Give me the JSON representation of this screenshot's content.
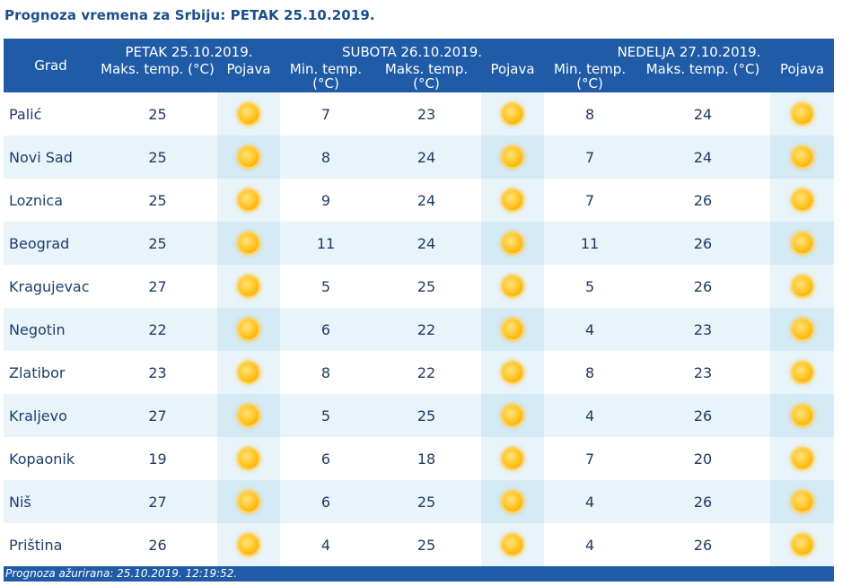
{
  "title": "Prognoza vremena za Srbiju: PETAK  25.10.2019.",
  "header": {
    "grad": "Grad",
    "days": [
      "PETAK  25.10.2019.",
      "SUBOTA  26.10.2019.",
      "NEDELJA  27.10.2019."
    ],
    "max_temp": "Maks. temp. (°C)",
    "min_temp": "Min. temp. (°C)",
    "pojava": "Pojava"
  },
  "weather_icon": "sun-icon",
  "rows": [
    {
      "city": "Palić",
      "d1_max": "25",
      "d2_min": "7",
      "d2_max": "23",
      "d3_min": "8",
      "d3_max": "24"
    },
    {
      "city": "Novi Sad",
      "d1_max": "25",
      "d2_min": "8",
      "d2_max": "24",
      "d3_min": "7",
      "d3_max": "24"
    },
    {
      "city": "Loznica",
      "d1_max": "25",
      "d2_min": "9",
      "d2_max": "24",
      "d3_min": "7",
      "d3_max": "26"
    },
    {
      "city": "Beograd",
      "d1_max": "25",
      "d2_min": "11",
      "d2_max": "24",
      "d3_min": "11",
      "d3_max": "26"
    },
    {
      "city": "Kragujevac",
      "d1_max": "27",
      "d2_min": "5",
      "d2_max": "25",
      "d3_min": "5",
      "d3_max": "26"
    },
    {
      "city": "Negotin",
      "d1_max": "22",
      "d2_min": "6",
      "d2_max": "22",
      "d3_min": "4",
      "d3_max": "23"
    },
    {
      "city": "Zlatibor",
      "d1_max": "23",
      "d2_min": "8",
      "d2_max": "22",
      "d3_min": "8",
      "d3_max": "23"
    },
    {
      "city": "Kraljevo",
      "d1_max": "27",
      "d2_min": "5",
      "d2_max": "25",
      "d3_min": "4",
      "d3_max": "26"
    },
    {
      "city": "Kopaonik",
      "d1_max": "19",
      "d2_min": "6",
      "d2_max": "18",
      "d3_min": "7",
      "d3_max": "20"
    },
    {
      "city": "Niš",
      "d1_max": "27",
      "d2_min": "6",
      "d2_max": "25",
      "d3_min": "4",
      "d3_max": "26"
    },
    {
      "city": "Priština",
      "d1_max": "26",
      "d2_min": "4",
      "d2_max": "25",
      "d3_min": "4",
      "d3_max": "26"
    }
  ],
  "footer": "Prognoza ažurirana:  25.10.2019. 12:19:52."
}
